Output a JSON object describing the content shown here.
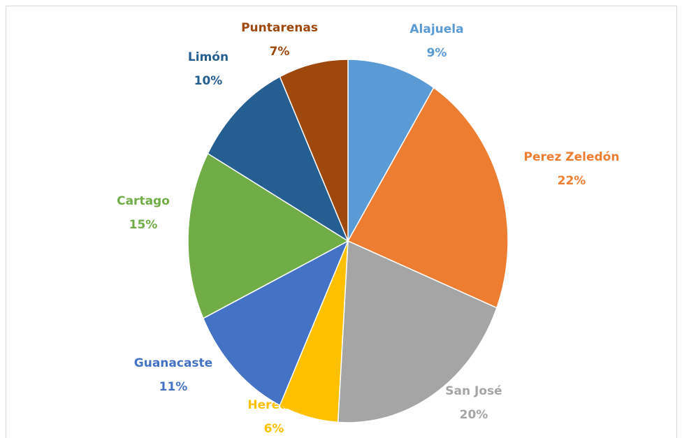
{
  "chart_data": {
    "type": "pie",
    "categories": [
      "Alajuela",
      "Perez Zeledón",
      "San José",
      "Heredia",
      "Guanacaste",
      "Cartago",
      "Limón",
      "Puntarenas"
    ],
    "values": [
      9,
      22,
      20,
      6,
      11,
      15,
      10,
      7
    ],
    "value_labels": [
      "9%",
      "22%",
      "20%",
      "6%",
      "11%",
      "15%",
      "10%",
      "7%"
    ],
    "colors": [
      "#5b9bd5",
      "#ed7d31",
      "#a5a5a5",
      "#ffc000",
      "#4472c4",
      "#70ad47",
      "#255e91",
      "#9e480e"
    ]
  }
}
